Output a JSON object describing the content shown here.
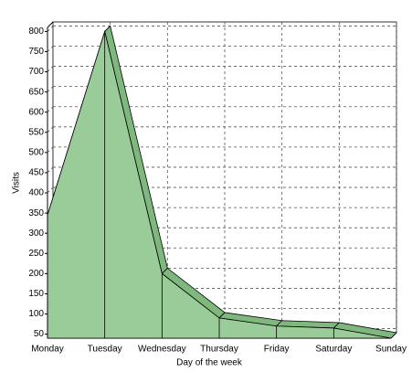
{
  "chart_data": {
    "type": "area3d",
    "x_label": "Day of the week",
    "y_label": "Visits",
    "categories": [
      "Monday",
      "Tuesday",
      "Wednesday",
      "Thursday",
      "Friday",
      "Saturday",
      "Sunday"
    ],
    "values": [
      345,
      800,
      200,
      90,
      70,
      65,
      40
    ],
    "color": "#99cc99",
    "top_color": "#7fb87f",
    "ylim": [
      40,
      810
    ],
    "yticks": [
      50,
      100,
      150,
      200,
      250,
      300,
      350,
      400,
      450,
      500,
      550,
      600,
      650,
      700,
      750,
      800
    ],
    "grid": true
  }
}
